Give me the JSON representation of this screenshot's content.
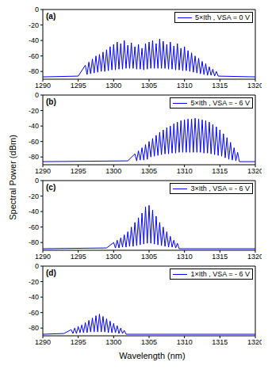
{
  "y_label": "Spectral Power (dBm)",
  "x_label": "Wavelength (nm)",
  "chart_data": [
    {
      "type": "line",
      "title": "(a)",
      "legend": "upper right",
      "xlim": [
        1290,
        1320
      ],
      "xticks": [
        1290,
        1295,
        1300,
        1305,
        1310,
        1315,
        1320
      ],
      "ylim": [
        -90,
        0
      ],
      "yticks": [
        -80,
        -60,
        -40,
        -20,
        0
      ],
      "x": [
        1290,
        1295,
        1296,
        1296.25,
        1296.5,
        1296.75,
        1297,
        1297.25,
        1297.5,
        1297.75,
        1298,
        1298.25,
        1298.5,
        1298.75,
        1299,
        1299.25,
        1299.5,
        1299.75,
        1300,
        1300.25,
        1300.5,
        1300.75,
        1301,
        1301.25,
        1301.5,
        1301.75,
        1302,
        1302.25,
        1302.5,
        1302.75,
        1303,
        1303.25,
        1303.5,
        1303.75,
        1304,
        1304.25,
        1304.5,
        1304.75,
        1305,
        1305.25,
        1305.5,
        1305.75,
        1306,
        1306.25,
        1306.5,
        1306.75,
        1307,
        1307.25,
        1307.5,
        1307.75,
        1308,
        1308.25,
        1308.5,
        1308.75,
        1309,
        1309.25,
        1309.5,
        1309.75,
        1310,
        1310.25,
        1310.5,
        1310.75,
        1311,
        1311.25,
        1311.5,
        1311.75,
        1312,
        1312.25,
        1312.5,
        1312.75,
        1313,
        1313.25,
        1313.5,
        1313.75,
        1314,
        1314.25,
        1314.5,
        1314.75,
        1320
      ],
      "series": [
        {
          "name": "5×Ith , VSA = 0 V",
          "color": "#0000ff",
          "values": [
            -87,
            -86,
            -72,
            -84,
            -68,
            -83,
            -64,
            -82,
            -60,
            -81,
            -58,
            -80,
            -55,
            -80,
            -52,
            -79,
            -48,
            -78,
            -45,
            -78,
            -42,
            -77,
            -44,
            -77,
            -40,
            -76,
            -46,
            -76,
            -43,
            -76,
            -48,
            -77,
            -45,
            -77,
            -50,
            -78,
            -44,
            -77,
            -42,
            -76,
            -40,
            -76,
            -44,
            -76,
            -38,
            -76,
            -41,
            -76,
            -45,
            -77,
            -42,
            -77,
            -47,
            -78,
            -44,
            -78,
            -50,
            -79,
            -48,
            -79,
            -53,
            -80,
            -56,
            -81,
            -60,
            -82,
            -63,
            -83,
            -67,
            -84,
            -70,
            -85,
            -74,
            -85,
            -77,
            -86,
            -80,
            -86,
            -87
          ]
        }
      ]
    },
    {
      "type": "line",
      "title": "(b)",
      "legend": "upper right",
      "xlim": [
        1290,
        1320
      ],
      "xticks": [
        1290,
        1295,
        1300,
        1305,
        1310,
        1315,
        1320
      ],
      "ylim": [
        -90,
        0
      ],
      "yticks": [
        -80,
        -60,
        -40,
        -20,
        0
      ],
      "x": [
        1290,
        1302,
        1303,
        1303.25,
        1303.5,
        1303.75,
        1304,
        1304.25,
        1304.5,
        1304.75,
        1305,
        1305.25,
        1305.5,
        1305.75,
        1306,
        1306.25,
        1306.5,
        1306.75,
        1307,
        1307.25,
        1307.5,
        1307.75,
        1308,
        1308.25,
        1308.5,
        1308.75,
        1309,
        1309.25,
        1309.5,
        1309.75,
        1310,
        1310.25,
        1310.5,
        1310.75,
        1311,
        1311.25,
        1311.5,
        1311.75,
        1312,
        1312.25,
        1312.5,
        1312.75,
        1313,
        1313.25,
        1313.5,
        1313.75,
        1314,
        1314.25,
        1314.5,
        1314.75,
        1315,
        1315.25,
        1315.5,
        1315.75,
        1316,
        1316.25,
        1316.5,
        1316.75,
        1317,
        1317.25,
        1317.5,
        1317.75,
        1320
      ],
      "series": [
        {
          "name": "5×Ith , VSA = - 6 V",
          "color": "#0000ff",
          "values": [
            -86,
            -85,
            -76,
            -85,
            -72,
            -84,
            -68,
            -84,
            -64,
            -83,
            -60,
            -80,
            -56,
            -79,
            -52,
            -78,
            -48,
            -77,
            -45,
            -76,
            -42,
            -76,
            -40,
            -75,
            -37,
            -75,
            -35,
            -74,
            -33,
            -74,
            -32,
            -74,
            -31,
            -74,
            -31,
            -74,
            -30,
            -74,
            -31,
            -74,
            -32,
            -75,
            -33,
            -75,
            -35,
            -76,
            -38,
            -77,
            -41,
            -78,
            -45,
            -79,
            -50,
            -81,
            -55,
            -83,
            -61,
            -84,
            -68,
            -85,
            -74,
            -86,
            -86
          ]
        }
      ]
    },
    {
      "type": "line",
      "title": "(c)",
      "legend": "upper right",
      "xlim": [
        1290,
        1320
      ],
      "xticks": [
        1290,
        1295,
        1300,
        1305,
        1310,
        1315,
        1320
      ],
      "ylim": [
        -90,
        0
      ],
      "yticks": [
        -80,
        -60,
        -40,
        -20,
        0
      ],
      "x": [
        1290,
        1299,
        1300,
        1300.25,
        1300.5,
        1300.75,
        1301,
        1301.25,
        1301.5,
        1301.75,
        1302,
        1302.25,
        1302.5,
        1302.75,
        1303,
        1303.25,
        1303.5,
        1303.75,
        1304,
        1304.25,
        1304.5,
        1304.75,
        1305,
        1305.25,
        1305.5,
        1305.75,
        1306,
        1306.25,
        1306.5,
        1306.75,
        1307,
        1307.25,
        1307.5,
        1307.75,
        1308,
        1308.25,
        1308.5,
        1308.75,
        1309,
        1309.25,
        1320
      ],
      "series": [
        {
          "name": "3×Ith , VSA = - 6 V",
          "color": "#0000ff",
          "values": [
            -88,
            -87,
            -80,
            -87,
            -77,
            -87,
            -74,
            -86,
            -70,
            -86,
            -66,
            -85,
            -60,
            -85,
            -54,
            -84,
            -48,
            -83,
            -42,
            -82,
            -34,
            -81,
            -32,
            -81,
            -38,
            -82,
            -46,
            -83,
            -54,
            -84,
            -60,
            -85,
            -66,
            -86,
            -72,
            -86,
            -77,
            -87,
            -81,
            -88,
            -88
          ]
        }
      ]
    },
    {
      "type": "line",
      "title": "(d)",
      "legend": "upper right",
      "xlim": [
        1290,
        1320
      ],
      "xticks": [
        1290,
        1295,
        1300,
        1305,
        1310,
        1315,
        1320
      ],
      "ylim": [
        -90,
        0
      ],
      "yticks": [
        -80,
        -60,
        -40,
        -20,
        0
      ],
      "x": [
        1290,
        1293,
        1294,
        1294.25,
        1294.5,
        1294.75,
        1295,
        1295.25,
        1295.5,
        1295.75,
        1296,
        1296.25,
        1296.5,
        1296.75,
        1297,
        1297.25,
        1297.5,
        1297.75,
        1298,
        1298.25,
        1298.5,
        1298.75,
        1299,
        1299.25,
        1299.5,
        1299.75,
        1300,
        1300.25,
        1300.5,
        1300.75,
        1301,
        1301.25,
        1301.5,
        1301.75,
        1320
      ],
      "series": [
        {
          "name": "1×Ith , VSA = - 6 V",
          "color": "#0000ff",
          "values": [
            -88,
            -87,
            -82,
            -87,
            -80,
            -87,
            -78,
            -86,
            -76,
            -86,
            -73,
            -86,
            -70,
            -85,
            -67,
            -85,
            -64,
            -85,
            -62,
            -85,
            -65,
            -85,
            -68,
            -86,
            -71,
            -86,
            -74,
            -86,
            -77,
            -87,
            -80,
            -87,
            -83,
            -88,
            -88
          ]
        }
      ]
    }
  ]
}
